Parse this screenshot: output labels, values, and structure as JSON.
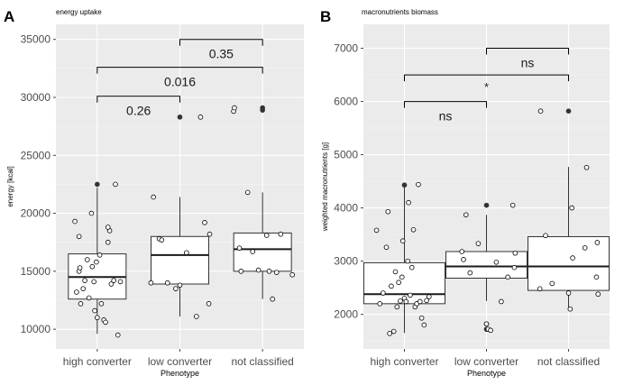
{
  "chart_data": [
    {
      "type": "box",
      "panel_label": "A",
      "title": "energy uptake",
      "xlabel": "Phenotype",
      "ylabel": "energy [kcal]",
      "categories": [
        "high converter",
        "low converter",
        "not classified"
      ],
      "ylim": [
        8300,
        36300
      ],
      "yticks": [
        10000,
        15000,
        20000,
        25000,
        30000,
        35000
      ],
      "boxes": [
        {
          "category": "high converter",
          "whisker_low": 9600,
          "q1": 12600,
          "median": 14500,
          "q3": 16500,
          "whisker_high": 22200
        },
        {
          "category": "low converter",
          "whisker_low": 11100,
          "q1": 13900,
          "median": 16400,
          "q3": 18000,
          "whisker_high": 21400
        },
        {
          "category": "not classified",
          "whisker_low": 12600,
          "q1": 15000,
          "median": 16900,
          "q3": 18300,
          "whisker_high": 21800
        }
      ],
      "outliers": [
        {
          "category": "high converter",
          "y": 22500
        },
        {
          "category": "low converter",
          "y": 28300
        },
        {
          "category": "not classified",
          "y": 28900
        },
        {
          "category": "not classified",
          "y": 29100
        }
      ],
      "points": [
        {
          "category": "high converter",
          "x_offset": -0.27,
          "y": 19300
        },
        {
          "category": "high converter",
          "x_offset": -0.22,
          "y": 18000
        },
        {
          "category": "high converter",
          "x_offset": -0.25,
          "y": 13200
        },
        {
          "category": "high converter",
          "x_offset": -0.2,
          "y": 12200
        },
        {
          "category": "high converter",
          "x_offset": -0.17,
          "y": 13500
        },
        {
          "category": "high converter",
          "x_offset": -0.22,
          "y": 15000
        },
        {
          "category": "high converter",
          "x_offset": -0.21,
          "y": 15300
        },
        {
          "category": "high converter",
          "x_offset": -0.15,
          "y": 14200
        },
        {
          "category": "high converter",
          "x_offset": -0.12,
          "y": 16000
        },
        {
          "category": "high converter",
          "x_offset": -0.1,
          "y": 12700
        },
        {
          "category": "high converter",
          "x_offset": -0.07,
          "y": 20000
        },
        {
          "category": "high converter",
          "x_offset": -0.06,
          "y": 15400
        },
        {
          "category": "high converter",
          "x_offset": -0.04,
          "y": 14100
        },
        {
          "category": "high converter",
          "x_offset": -0.03,
          "y": 11600
        },
        {
          "category": "high converter",
          "x_offset": 0.0,
          "y": 11000
        },
        {
          "category": "high converter",
          "x_offset": 0.03,
          "y": 16400
        },
        {
          "category": "high converter",
          "x_offset": 0.05,
          "y": 12200
        },
        {
          "category": "high converter",
          "x_offset": 0.08,
          "y": 10800
        },
        {
          "category": "high converter",
          "x_offset": 0.1,
          "y": 10600
        },
        {
          "category": "high converter",
          "x_offset": 0.13,
          "y": 17500
        },
        {
          "category": "high converter",
          "x_offset": 0.15,
          "y": 18500
        },
        {
          "category": "high converter",
          "x_offset": 0.17,
          "y": 13900
        },
        {
          "category": "high converter",
          "x_offset": 0.2,
          "y": 14200
        },
        {
          "category": "high converter",
          "x_offset": 0.22,
          "y": 22500
        },
        {
          "category": "high converter",
          "x_offset": 0.25,
          "y": 9500
        },
        {
          "category": "high converter",
          "x_offset": 0.28,
          "y": 14100
        },
        {
          "category": "high converter",
          "x_offset": 0.13,
          "y": 18800
        },
        {
          "category": "high converter",
          "x_offset": -0.01,
          "y": 15800
        },
        {
          "category": "low converter",
          "x_offset": -0.32,
          "y": 21400
        },
        {
          "category": "low converter",
          "x_offset": -0.35,
          "y": 14000
        },
        {
          "category": "low converter",
          "x_offset": -0.25,
          "y": 17800
        },
        {
          "category": "low converter",
          "x_offset": -0.22,
          "y": 17700
        },
        {
          "category": "low converter",
          "x_offset": -0.15,
          "y": 14000
        },
        {
          "category": "low converter",
          "x_offset": -0.05,
          "y": 13500
        },
        {
          "category": "low converter",
          "x_offset": 0.0,
          "y": 13800
        },
        {
          "category": "low converter",
          "x_offset": 0.08,
          "y": 16600
        },
        {
          "category": "low converter",
          "x_offset": 0.2,
          "y": 11100
        },
        {
          "category": "low converter",
          "x_offset": 0.25,
          "y": 28300
        },
        {
          "category": "low converter",
          "x_offset": 0.3,
          "y": 19200
        },
        {
          "category": "low converter",
          "x_offset": 0.35,
          "y": 12200
        },
        {
          "category": "low converter",
          "x_offset": 0.36,
          "y": 18200
        },
        {
          "category": "not classified",
          "x_offset": -0.35,
          "y": 28800
        },
        {
          "category": "not classified",
          "x_offset": -0.34,
          "y": 29100
        },
        {
          "category": "not classified",
          "x_offset": -0.28,
          "y": 17000
        },
        {
          "category": "not classified",
          "x_offset": -0.26,
          "y": 15000
        },
        {
          "category": "not classified",
          "x_offset": -0.18,
          "y": 21800
        },
        {
          "category": "not classified",
          "x_offset": -0.12,
          "y": 16700
        },
        {
          "category": "not classified",
          "x_offset": -0.05,
          "y": 15100
        },
        {
          "category": "not classified",
          "x_offset": 0.05,
          "y": 18100
        },
        {
          "category": "not classified",
          "x_offset": 0.08,
          "y": 15000
        },
        {
          "category": "not classified",
          "x_offset": 0.12,
          "y": 12600
        },
        {
          "category": "not classified",
          "x_offset": 0.17,
          "y": 14900
        },
        {
          "category": "not classified",
          "x_offset": 0.22,
          "y": 18200
        },
        {
          "category": "not classified",
          "x_offset": 0.36,
          "y": 14700
        }
      ],
      "brackets": [
        {
          "from": "high converter",
          "to": "low converter",
          "y": 30100,
          "label": "0.26"
        },
        {
          "from": "high converter",
          "to": "not classified",
          "y": 32600,
          "label": "0.016"
        },
        {
          "from": "low converter",
          "to": "not classified",
          "y": 35000,
          "label": "0.35"
        }
      ],
      "grid": true
    },
    {
      "type": "box",
      "panel_label": "B",
      "title": "macronutrients biomass",
      "xlabel": "Phenotype",
      "ylabel": "weighted macronutrients [g]",
      "categories": [
        "high converter",
        "low converter",
        "not classified"
      ],
      "ylim": [
        1350,
        7450
      ],
      "yticks": [
        2000,
        3000,
        4000,
        5000,
        6000,
        7000
      ],
      "boxes": [
        {
          "category": "high converter",
          "whisker_low": 1650,
          "q1": 2200,
          "median": 2380,
          "q3": 2970,
          "whisker_high": 4430
        },
        {
          "category": "low converter",
          "whisker_low": 2250,
          "q1": 2680,
          "median": 2900,
          "q3": 3180,
          "whisker_high": 3870
        },
        {
          "category": "not classified",
          "whisker_low": 2100,
          "q1": 2450,
          "median": 2900,
          "q3": 3460,
          "whisker_high": 4770
        }
      ],
      "outliers": [
        {
          "category": "high converter",
          "y": 4430
        },
        {
          "category": "low converter",
          "y": 4050
        },
        {
          "category": "low converter",
          "y": 1820
        },
        {
          "category": "low converter",
          "y": 1720
        },
        {
          "category": "not classified",
          "y": 5820
        }
      ],
      "points": [
        {
          "category": "high converter",
          "x_offset": -0.34,
          "y": 3580
        },
        {
          "category": "high converter",
          "x_offset": -0.3,
          "y": 2200
        },
        {
          "category": "high converter",
          "x_offset": -0.26,
          "y": 2400
        },
        {
          "category": "high converter",
          "x_offset": -0.22,
          "y": 3260
        },
        {
          "category": "high converter",
          "x_offset": -0.2,
          "y": 3930
        },
        {
          "category": "high converter",
          "x_offset": -0.18,
          "y": 1640
        },
        {
          "category": "high converter",
          "x_offset": -0.16,
          "y": 2530
        },
        {
          "category": "high converter",
          "x_offset": -0.13,
          "y": 1680
        },
        {
          "category": "high converter",
          "x_offset": -0.11,
          "y": 2800
        },
        {
          "category": "high converter",
          "x_offset": -0.09,
          "y": 2140
        },
        {
          "category": "high converter",
          "x_offset": -0.07,
          "y": 2600
        },
        {
          "category": "high converter",
          "x_offset": -0.05,
          "y": 2250
        },
        {
          "category": "high converter",
          "x_offset": -0.03,
          "y": 2700
        },
        {
          "category": "high converter",
          "x_offset": -0.02,
          "y": 3380
        },
        {
          "category": "high converter",
          "x_offset": 0.0,
          "y": 2300
        },
        {
          "category": "high converter",
          "x_offset": 0.02,
          "y": 2240
        },
        {
          "category": "high converter",
          "x_offset": 0.04,
          "y": 3000
        },
        {
          "category": "high converter",
          "x_offset": 0.05,
          "y": 4100
        },
        {
          "category": "high converter",
          "x_offset": 0.07,
          "y": 2360
        },
        {
          "category": "high converter",
          "x_offset": 0.09,
          "y": 2880
        },
        {
          "category": "high converter",
          "x_offset": 0.11,
          "y": 3590
        },
        {
          "category": "high converter",
          "x_offset": 0.13,
          "y": 2140
        },
        {
          "category": "high converter",
          "x_offset": 0.15,
          "y": 2200
        },
        {
          "category": "high converter",
          "x_offset": 0.17,
          "y": 4440
        },
        {
          "category": "high converter",
          "x_offset": 0.19,
          "y": 2240
        },
        {
          "category": "high converter",
          "x_offset": 0.21,
          "y": 1930
        },
        {
          "category": "high converter",
          "x_offset": 0.24,
          "y": 1800
        },
        {
          "category": "high converter",
          "x_offset": 0.27,
          "y": 2260
        },
        {
          "category": "high converter",
          "x_offset": 0.3,
          "y": 2330
        },
        {
          "category": "low converter",
          "x_offset": -0.3,
          "y": 3180
        },
        {
          "category": "low converter",
          "x_offset": -0.28,
          "y": 3030
        },
        {
          "category": "low converter",
          "x_offset": -0.25,
          "y": 3870
        },
        {
          "category": "low converter",
          "x_offset": -0.2,
          "y": 2780
        },
        {
          "category": "low converter",
          "x_offset": -0.1,
          "y": 3330
        },
        {
          "category": "low converter",
          "x_offset": 0.0,
          "y": 1820
        },
        {
          "category": "low converter",
          "x_offset": 0.02,
          "y": 1720
        },
        {
          "category": "low converter",
          "x_offset": 0.05,
          "y": 1700
        },
        {
          "category": "low converter",
          "x_offset": 0.12,
          "y": 2980
        },
        {
          "category": "low converter",
          "x_offset": 0.18,
          "y": 2240
        },
        {
          "category": "low converter",
          "x_offset": 0.26,
          "y": 2700
        },
        {
          "category": "low converter",
          "x_offset": 0.32,
          "y": 4050
        },
        {
          "category": "low converter",
          "x_offset": 0.34,
          "y": 2880
        },
        {
          "category": "low converter",
          "x_offset": 0.35,
          "y": 3150
        },
        {
          "category": "not classified",
          "x_offset": -0.35,
          "y": 2480
        },
        {
          "category": "not classified",
          "x_offset": -0.34,
          "y": 5820
        },
        {
          "category": "not classified",
          "x_offset": -0.28,
          "y": 3480
        },
        {
          "category": "not classified",
          "x_offset": -0.2,
          "y": 2580
        },
        {
          "category": "not classified",
          "x_offset": 0.0,
          "y": 2400
        },
        {
          "category": "not classified",
          "x_offset": 0.02,
          "y": 2100
        },
        {
          "category": "not classified",
          "x_offset": 0.04,
          "y": 4000
        },
        {
          "category": "not classified",
          "x_offset": 0.05,
          "y": 3060
        },
        {
          "category": "not classified",
          "x_offset": 0.2,
          "y": 3250
        },
        {
          "category": "not classified",
          "x_offset": 0.22,
          "y": 4760
        },
        {
          "category": "not classified",
          "x_offset": 0.34,
          "y": 2700
        },
        {
          "category": "not classified",
          "x_offset": 0.35,
          "y": 3350
        },
        {
          "category": "not classified",
          "x_offset": 0.36,
          "y": 2380
        }
      ],
      "brackets": [
        {
          "from": "high converter",
          "to": "low converter",
          "y": 6000,
          "label": "ns"
        },
        {
          "from": "high converter",
          "to": "not classified",
          "y": 6500,
          "label": "*"
        },
        {
          "from": "low converter",
          "to": "not classified",
          "y": 7000,
          "label": "ns"
        }
      ],
      "grid": true
    }
  ]
}
